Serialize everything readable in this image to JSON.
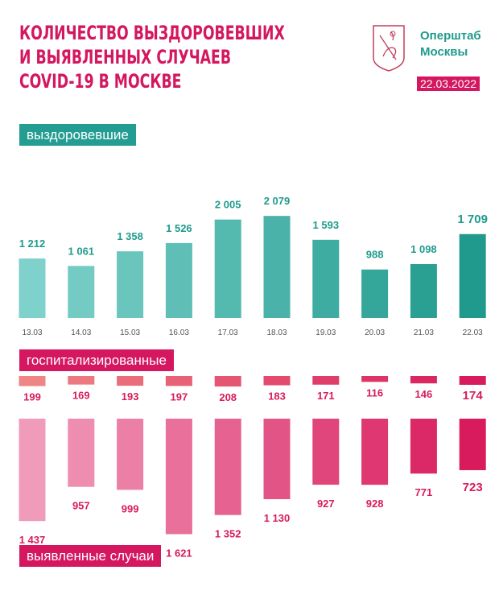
{
  "header": {
    "title_lines": [
      "КОЛИЧЕСТВО ВЫЗДОРОВЕВШИХ",
      "И ВЫЯВЛЕННЫХ СЛУЧАЕВ",
      "COVID-19 В МОСКВЕ"
    ],
    "org_lines": [
      "Оперштаб",
      "Москвы"
    ],
    "date": "22.03.2022",
    "logo_icon": "moscow-coat-of-arms"
  },
  "sections": {
    "recovered": "выздоровевшие",
    "hospitalized": "госпитализированные",
    "cases": "выявленные случаи"
  },
  "colors": {
    "title": "#d4175f",
    "teal_light": "#7fd1cb",
    "teal_dark": "#1f9a8c",
    "hosp_light": "#ef8585",
    "hosp_dark": "#d81b5c",
    "cases_light": "#f19bbb",
    "cases_dark": "#d81b5c"
  },
  "chart_data": {
    "type": "bar",
    "title": "Количество выздоровевших и выявленных случаев COVID-19 в Москве",
    "categories": [
      "13.03",
      "14.03",
      "15.03",
      "16.03",
      "17.03",
      "18.03",
      "19.03",
      "20.03",
      "21.03",
      "22.03"
    ],
    "series": [
      {
        "name": "выздоровевшие",
        "values": [
          1212,
          1061,
          1358,
          1526,
          2005,
          2079,
          1593,
          988,
          1098,
          1709
        ],
        "labels": [
          "1 212",
          "1 061",
          "1 358",
          "1 526",
          "2 005",
          "2 079",
          "1 593",
          "988",
          "1 098",
          "1 709"
        ]
      },
      {
        "name": "госпитализированные",
        "values": [
          199,
          169,
          193,
          197,
          208,
          183,
          171,
          116,
          146,
          174
        ],
        "labels": [
          "199",
          "169",
          "193",
          "197",
          "208",
          "183",
          "171",
          "116",
          "146",
          "174"
        ]
      },
      {
        "name": "выявленные случаи",
        "values": [
          1437,
          957,
          999,
          1621,
          1352,
          1130,
          927,
          928,
          771,
          723
        ],
        "labels": [
          "1 437",
          "957",
          "999",
          "1 621",
          "1 352",
          "1 130",
          "927",
          "928",
          "771",
          "723"
        ]
      }
    ]
  }
}
